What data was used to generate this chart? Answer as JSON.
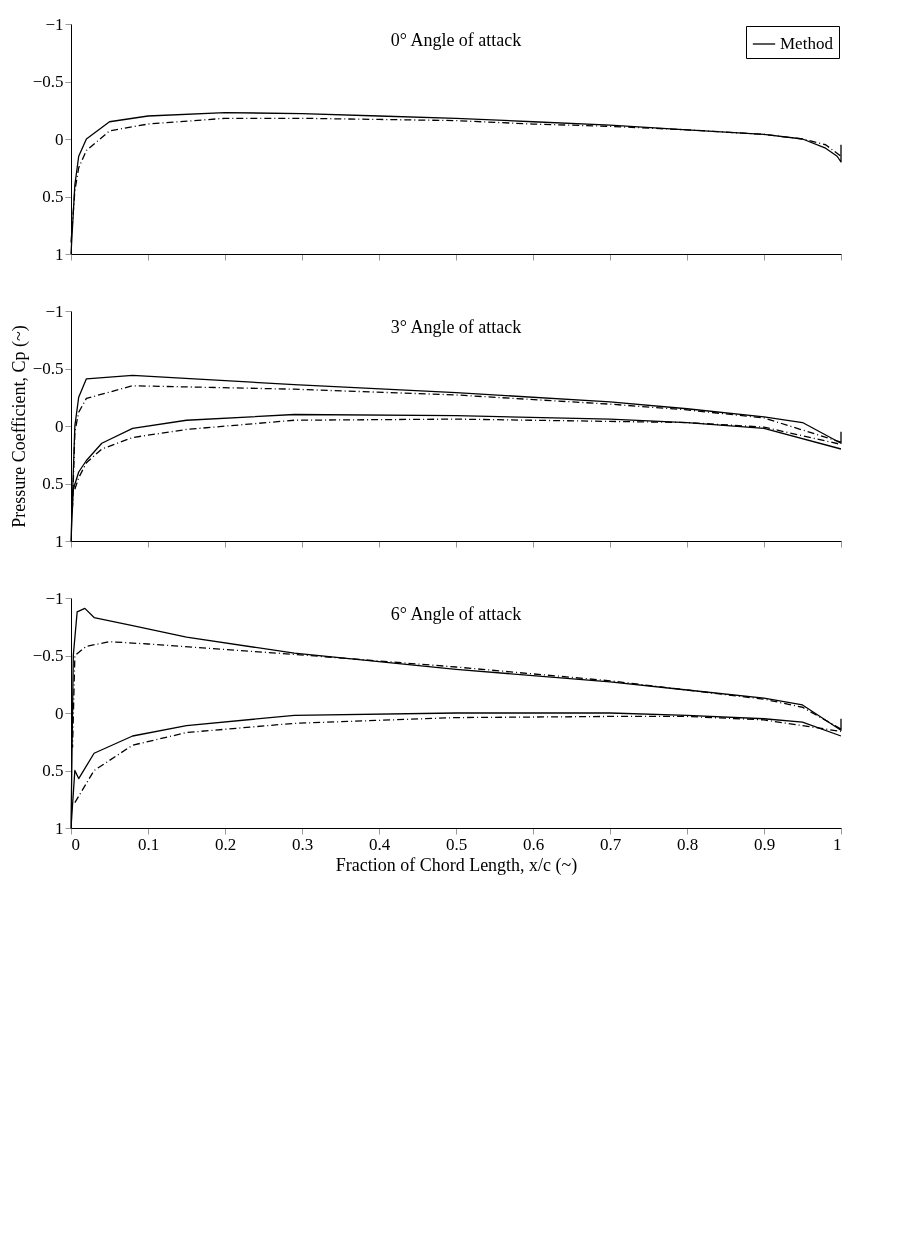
{
  "chart_data": [
    {
      "type": "line",
      "title": "0° Angle of attack",
      "xlim": [
        0,
        1
      ],
      "ylim": [
        1,
        -1
      ],
      "xticks": [
        0,
        0.1,
        0.2,
        0.3,
        0.4,
        0.5,
        0.6,
        0.7,
        0.8,
        0.9,
        1
      ],
      "yticks": [
        -1,
        -0.5,
        0,
        0.5,
        1
      ],
      "tick_labels": "y",
      "grid": false,
      "legend": "top right",
      "series": [
        {
          "name": "Method",
          "color": "#000000",
          "line_style": "solid",
          "x": [
            0,
            0.005,
            0.01,
            0.02,
            0.05,
            0.1,
            0.2,
            0.3,
            0.4,
            0.5,
            0.6,
            0.7,
            0.8,
            0.9,
            0.95,
            0.98,
            0.995,
            1,
            1
          ],
          "values": [
            1,
            0.4,
            0.15,
            0,
            -0.15,
            -0.2,
            -0.23,
            -0.22,
            -0.2,
            -0.18,
            -0.15,
            -0.12,
            -0.08,
            -0.04,
            0,
            0.08,
            0.15,
            0.2,
            0.05
          ]
        },
        {
          "color": "#000000",
          "line_style": "dashdot",
          "x": [
            0,
            0.005,
            0.01,
            0.02,
            0.05,
            0.1,
            0.2,
            0.3,
            0.4,
            0.5,
            0.6,
            0.7,
            0.8,
            0.9,
            0.95,
            0.98,
            1
          ],
          "values": [
            0.9,
            0.45,
            0.25,
            0.1,
            -0.07,
            -0.13,
            -0.18,
            -0.18,
            -0.17,
            -0.16,
            -0.13,
            -0.11,
            -0.08,
            -0.04,
            0,
            0.05,
            0.15
          ]
        }
      ]
    },
    {
      "type": "line",
      "title": "3° Angle of attack",
      "ylabel": "Pressure Coefficient, Cp (~)",
      "xlim": [
        0,
        1
      ],
      "ylim": [
        1,
        -1
      ],
      "xticks": [
        0,
        0.1,
        0.2,
        0.3,
        0.4,
        0.5,
        0.6,
        0.7,
        0.8,
        0.9,
        1
      ],
      "yticks": [
        -1,
        -0.5,
        0,
        0.5,
        1
      ],
      "tick_labels": "y",
      "grid": false,
      "series": [
        {
          "color": "#000000",
          "line_style": "solid",
          "x": [
            1,
            1,
            0.95,
            0.9,
            0.8,
            0.7,
            0.5,
            0.29,
            0.08,
            0.02,
            0.01,
            0.005,
            0,
            0.003,
            0.01,
            0.02,
            0.04,
            0.08,
            0.15,
            0.29,
            0.5,
            0.7,
            0.8,
            0.9,
            1
          ],
          "values": [
            0.05,
            0.15,
            -0.03,
            -0.08,
            -0.15,
            -0.21,
            -0.29,
            -0.36,
            -0.44,
            -0.41,
            -0.25,
            0,
            1,
            0.55,
            0.4,
            0.3,
            0.15,
            0.02,
            -0.05,
            -0.1,
            -0.09,
            -0.06,
            -0.03,
            0.02,
            0.2
          ]
        },
        {
          "color": "#000000",
          "line_style": "dashdot",
          "x": [
            1,
            0.9,
            0.8,
            0.7,
            0.5,
            0.29,
            0.08,
            0.02,
            0.01,
            0.005,
            0.002
          ],
          "values": [
            0.14,
            -0.07,
            -0.14,
            -0.19,
            -0.27,
            -0.32,
            -0.35,
            -0.24,
            -0.12,
            0.05,
            0.7
          ]
        },
        {
          "color": "#000000",
          "line_style": "dashdot",
          "x": [
            0.005,
            0.01,
            0.02,
            0.04,
            0.08,
            0.15,
            0.29,
            0.5,
            0.7,
            0.8,
            0.9,
            1
          ],
          "values": [
            0.55,
            0.45,
            0.32,
            0.2,
            0.1,
            0.03,
            -0.05,
            -0.06,
            -0.04,
            -0.03,
            0.01,
            0.16
          ]
        }
      ]
    },
    {
      "type": "line",
      "title": "6° Angle of attack",
      "xlabel": "Fraction of Chord Length, x/c (~)",
      "xlim": [
        0,
        1
      ],
      "ylim": [
        1,
        -1
      ],
      "xticks": [
        0,
        0.1,
        0.2,
        0.3,
        0.4,
        0.5,
        0.6,
        0.7,
        0.8,
        0.9,
        1
      ],
      "yticks": [
        -1,
        -0.5,
        0,
        0.5,
        1
      ],
      "grid": false,
      "series": [
        {
          "color": "#000000",
          "line_style": "solid",
          "x": [
            1,
            1,
            0.95,
            0.9,
            0.8,
            0.7,
            0.5,
            0.29,
            0.15,
            0.08,
            0.03,
            0.018,
            0.008,
            0.003,
            0,
            0.005,
            0.01,
            0.03,
            0.08,
            0.15,
            0.29,
            0.5,
            0.7,
            0.8,
            0.9,
            0.95,
            1
          ],
          "values": [
            0.05,
            0.15,
            -0.07,
            -0.13,
            -0.2,
            -0.27,
            -0.38,
            -0.52,
            -0.66,
            -0.76,
            -0.83,
            -0.91,
            -0.88,
            -0.5,
            1,
            0.5,
            0.57,
            0.35,
            0.2,
            0.11,
            0.02,
            0,
            0,
            0.02,
            0.05,
            0.08,
            0.2
          ]
        },
        {
          "color": "#000000",
          "line_style": "dashdot",
          "x": [
            1,
            0.95,
            0.9,
            0.8,
            0.7,
            0.5,
            0.29,
            0.1,
            0.05,
            0.02,
            0.005,
            0.002
          ],
          "values": [
            0.14,
            -0.05,
            -0.12,
            -0.2,
            -0.28,
            -0.4,
            -0.51,
            -0.6,
            -0.62,
            -0.58,
            -0.5,
            0.3
          ]
        },
        {
          "color": "#000000",
          "line_style": "dashdot",
          "x": [
            0.005,
            0.03,
            0.08,
            0.15,
            0.29,
            0.5,
            0.7,
            0.8,
            0.9,
            1
          ],
          "values": [
            0.78,
            0.5,
            0.28,
            0.17,
            0.09,
            0.04,
            0.03,
            0.03,
            0.06,
            0.16
          ]
        }
      ]
    }
  ]
}
